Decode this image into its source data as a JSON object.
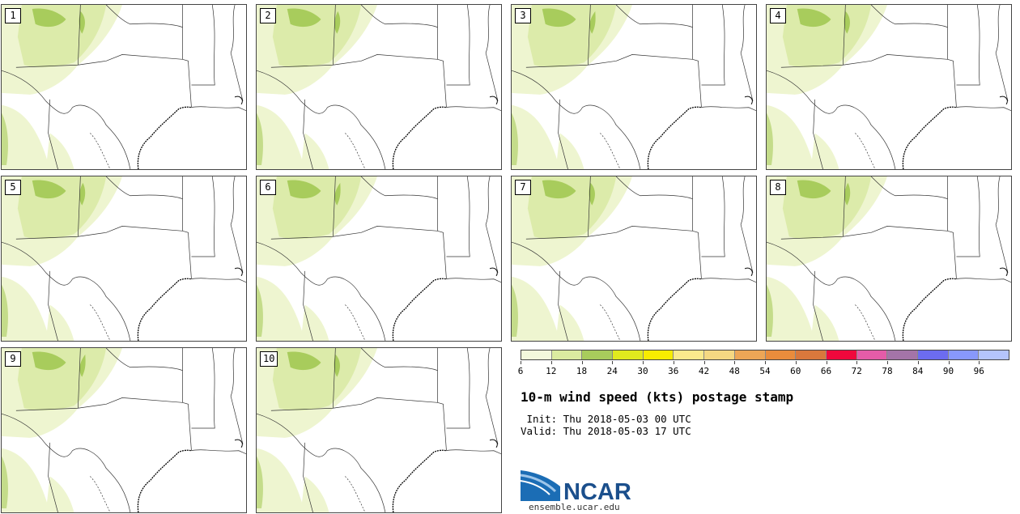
{
  "panels": [
    {
      "label": "1"
    },
    {
      "label": "2"
    },
    {
      "label": "3"
    },
    {
      "label": "4"
    },
    {
      "label": "5"
    },
    {
      "label": "6"
    },
    {
      "label": "7"
    },
    {
      "label": "8"
    },
    {
      "label": "9"
    },
    {
      "label": "10"
    }
  ],
  "colorbar": {
    "colors": [
      "#f3f8dc",
      "#dbeba0",
      "#a8cc5c",
      "#e0ea1e",
      "#f8ec00",
      "#fbea8c",
      "#f5d882",
      "#eda656",
      "#e98c3c",
      "#d9783c",
      "#f0083c",
      "#e45ca8",
      "#a474a8",
      "#6c6cf0",
      "#8898fc",
      "#b4c4fc"
    ],
    "ticks": [
      "6",
      "12",
      "18",
      "24",
      "30",
      "36",
      "42",
      "48",
      "54",
      "60",
      "66",
      "72",
      "78",
      "84",
      "90",
      "96"
    ]
  },
  "title": "10-m wind speed (kts) postage stamp",
  "init": " Init: Thu 2018-05-03 00 UTC",
  "valid": "Valid: Thu 2018-05-03 17 UTC",
  "logo": {
    "text": "NCAR",
    "url": "ensemble.ucar.edu",
    "color": "#1b4f8c"
  },
  "map_colors": {
    "light": "#eef5d0",
    "mid": "#dcebaa",
    "dark": "#a8cc5c",
    "outline": "#333333"
  }
}
